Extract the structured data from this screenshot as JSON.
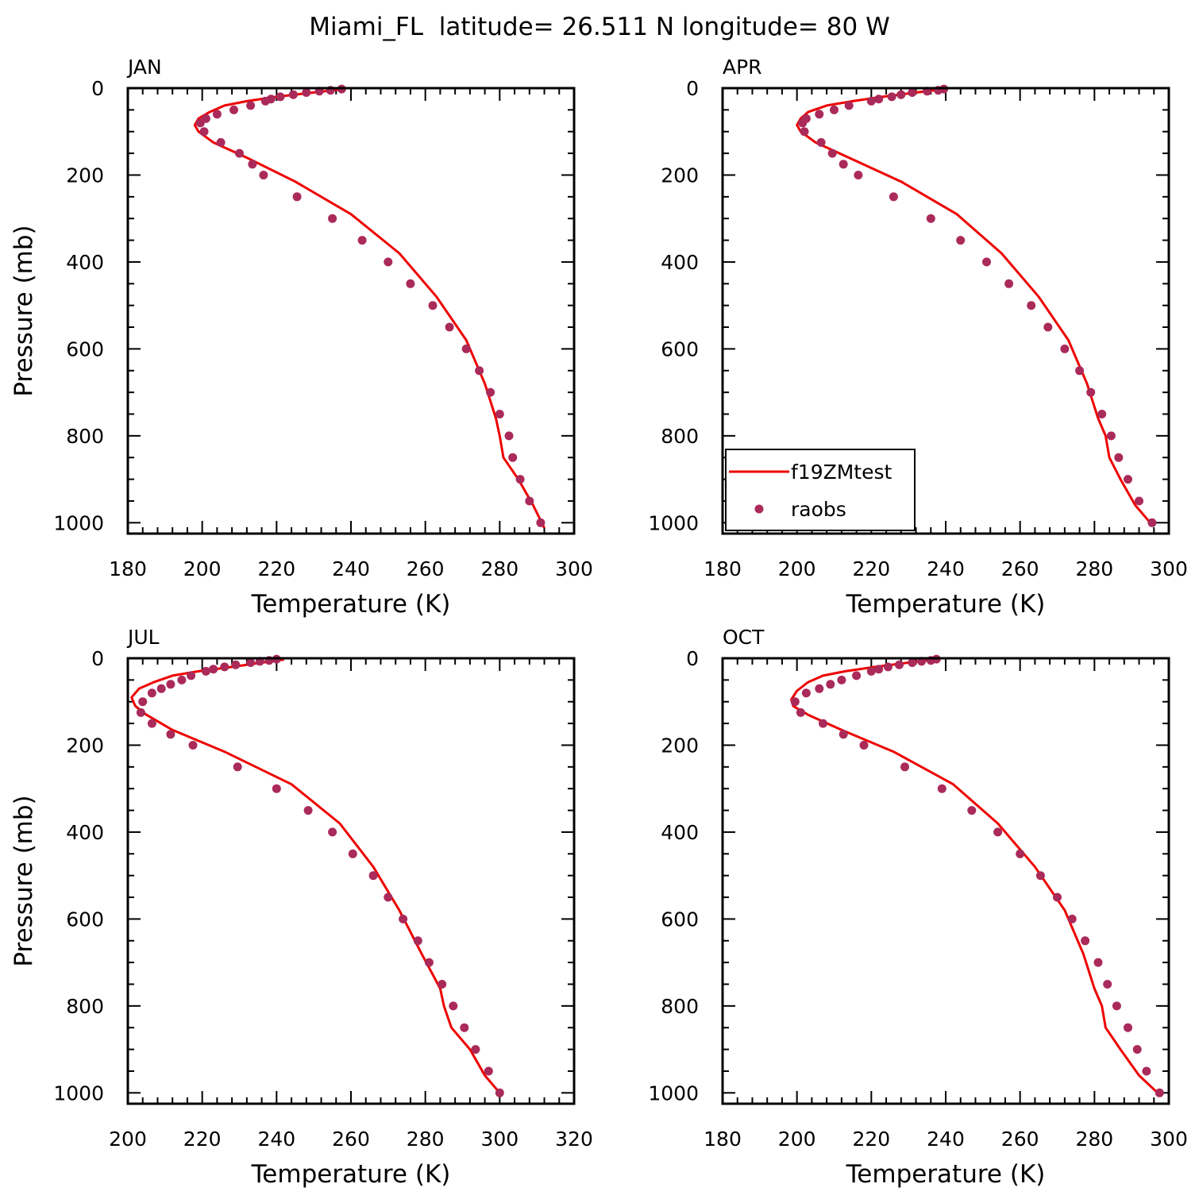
{
  "title": "Miami_FL  latitude= 26.511 N longitude= 80 W",
  "colors": {
    "model": "#ee0000",
    "obs": "#aa2a5a"
  },
  "legend": {
    "model_label": "f19ZMtest",
    "obs_label": "raobs",
    "panel": 1
  },
  "chart_data": [
    {
      "type": "line",
      "panel_title": "JAN",
      "xlabel": "Temperature (K)",
      "ylabel": "Pressure (mb)",
      "xlim": [
        180,
        300
      ],
      "xticks": [
        180,
        200,
        220,
        240,
        260,
        280,
        300
      ],
      "ylim": [
        1025,
        0
      ],
      "yticks": [
        0,
        200,
        400,
        600,
        800,
        1000
      ],
      "series": [
        {
          "name": "f19ZMtest",
          "style": "line",
          "x": [
            237,
            230,
            220,
            212,
            206,
            202,
            199,
            198,
            199,
            203,
            212,
            225,
            240,
            253,
            263,
            271,
            276,
            279,
            280,
            281,
            285,
            289,
            292
          ],
          "y": [
            3,
            10,
            20,
            30,
            40,
            55,
            70,
            85,
            100,
            125,
            160,
            215,
            290,
            380,
            480,
            580,
            680,
            760,
            800,
            850,
            900,
            960,
            1012
          ]
        },
        {
          "name": "raobs",
          "style": "dots",
          "x": [
            237.5,
            234.5,
            231.5,
            228,
            224.5,
            221,
            218.5,
            217,
            213,
            208.5,
            204,
            201,
            199.5,
            200.5,
            205,
            210,
            213.5,
            216.5,
            225.5,
            235,
            243,
            250,
            256,
            262,
            266.5,
            271,
            274.5,
            277.5,
            280,
            282.5,
            283.5,
            285.5,
            288,
            291
          ],
          "y": [
            2,
            5,
            7,
            10,
            15,
            20,
            25,
            30,
            40,
            50,
            60,
            70,
            80,
            100,
            125,
            150,
            175,
            200,
            250,
            300,
            350,
            400,
            450,
            500,
            550,
            600,
            650,
            700,
            750,
            800,
            850,
            900,
            950,
            1000
          ]
        }
      ]
    },
    {
      "type": "line",
      "panel_title": "APR",
      "xlabel": "Temperature (K)",
      "ylabel": "",
      "xlim": [
        180,
        300
      ],
      "xticks": [
        180,
        200,
        220,
        240,
        260,
        280,
        300
      ],
      "ylim": [
        1025,
        0
      ],
      "yticks": [
        0,
        200,
        400,
        600,
        800,
        1000
      ],
      "series": [
        {
          "name": "f19ZMtest",
          "style": "line",
          "x": [
            239,
            232,
            223,
            215,
            208,
            203,
            201,
            200,
            201,
            205,
            214,
            228,
            243,
            255,
            265,
            273,
            278,
            281,
            283,
            284,
            287,
            291,
            295
          ],
          "y": [
            3,
            10,
            20,
            30,
            40,
            55,
            70,
            85,
            100,
            125,
            160,
            215,
            290,
            380,
            480,
            580,
            680,
            760,
            800,
            850,
            900,
            960,
            1000
          ]
        },
        {
          "name": "raobs",
          "style": "dots",
          "x": [
            239.5,
            238,
            235,
            231,
            228,
            225.5,
            222,
            220,
            214,
            210,
            206,
            202.5,
            201.5,
            202,
            206.5,
            209.5,
            212.5,
            216.5,
            226,
            236,
            244,
            251,
            257,
            263,
            267.5,
            272,
            276,
            279,
            282,
            284.5,
            286.5,
            289,
            292,
            295.5
          ],
          "y": [
            2,
            5,
            7,
            10,
            15,
            20,
            25,
            30,
            40,
            50,
            60,
            70,
            80,
            100,
            125,
            150,
            175,
            200,
            250,
            300,
            350,
            400,
            450,
            500,
            550,
            600,
            650,
            700,
            750,
            800,
            850,
            900,
            950,
            1000
          ]
        }
      ]
    },
    {
      "type": "line",
      "panel_title": "JUL",
      "xlabel": "Temperature (K)",
      "ylabel": "Pressure (mb)",
      "xlim": [
        200,
        320
      ],
      "xticks": [
        200,
        220,
        240,
        260,
        280,
        300,
        320
      ],
      "ylim": [
        1025,
        0
      ],
      "yticks": [
        0,
        200,
        400,
        600,
        800,
        1000
      ],
      "series": [
        {
          "name": "f19ZMtest",
          "style": "line",
          "x": [
            242,
            236,
            228,
            219,
            212,
            207,
            203,
            201,
            202,
            205,
            212,
            226,
            244,
            257,
            266,
            273,
            279,
            284,
            285,
            287,
            292,
            296,
            300
          ],
          "y": [
            3,
            10,
            20,
            30,
            40,
            55,
            70,
            90,
            110,
            130,
            165,
            215,
            290,
            380,
            480,
            580,
            680,
            760,
            800,
            850,
            900,
            960,
            1000
          ]
        },
        {
          "name": "raobs",
          "style": "dots",
          "x": [
            240,
            238,
            235.5,
            233,
            229,
            226,
            223,
            221,
            217,
            214.5,
            211.5,
            209,
            206.5,
            204,
            203.5,
            206.5,
            211.5,
            217.5,
            229.5,
            240,
            248.5,
            255,
            260.5,
            266,
            270,
            274,
            278,
            281,
            284.5,
            287.5,
            290.5,
            293.5,
            297,
            300
          ],
          "y": [
            2,
            5,
            7,
            10,
            15,
            20,
            25,
            30,
            40,
            50,
            60,
            70,
            80,
            100,
            125,
            150,
            175,
            200,
            250,
            300,
            350,
            400,
            450,
            500,
            550,
            600,
            650,
            700,
            750,
            800,
            850,
            900,
            950,
            1000
          ]
        }
      ]
    },
    {
      "type": "line",
      "panel_title": "OCT",
      "xlabel": "Temperature (K)",
      "ylabel": "",
      "xlim": [
        180,
        300
      ],
      "xticks": [
        180,
        200,
        220,
        240,
        260,
        280,
        300
      ],
      "ylim": [
        1025,
        0
      ],
      "yticks": [
        0,
        200,
        400,
        600,
        800,
        1000
      ],
      "series": [
        {
          "name": "f19ZMtest",
          "style": "line",
          "x": [
            237,
            230,
            221,
            213,
            207,
            203,
            200,
            198.5,
            199,
            203,
            212,
            226,
            242,
            254,
            264,
            272,
            277,
            280,
            282,
            283,
            287,
            292,
            297
          ],
          "y": [
            3,
            10,
            20,
            30,
            40,
            55,
            75,
            95,
            110,
            130,
            165,
            215,
            290,
            380,
            480,
            580,
            680,
            760,
            800,
            850,
            900,
            960,
            1000
          ]
        },
        {
          "name": "raobs",
          "style": "dots",
          "x": [
            237.5,
            236,
            233.5,
            231,
            227.5,
            224.5,
            222,
            220,
            216,
            212,
            209,
            206,
            202.5,
            199.5,
            201,
            207,
            212.5,
            218,
            229,
            239,
            247,
            254,
            260,
            265.5,
            270,
            274,
            277.5,
            281,
            283.5,
            286,
            289,
            291.5,
            294,
            297.5
          ],
          "y": [
            2,
            5,
            7,
            10,
            15,
            20,
            25,
            30,
            40,
            50,
            60,
            70,
            80,
            100,
            125,
            150,
            175,
            200,
            250,
            300,
            350,
            400,
            450,
            500,
            550,
            600,
            650,
            700,
            750,
            800,
            850,
            900,
            950,
            1000
          ]
        }
      ]
    }
  ]
}
